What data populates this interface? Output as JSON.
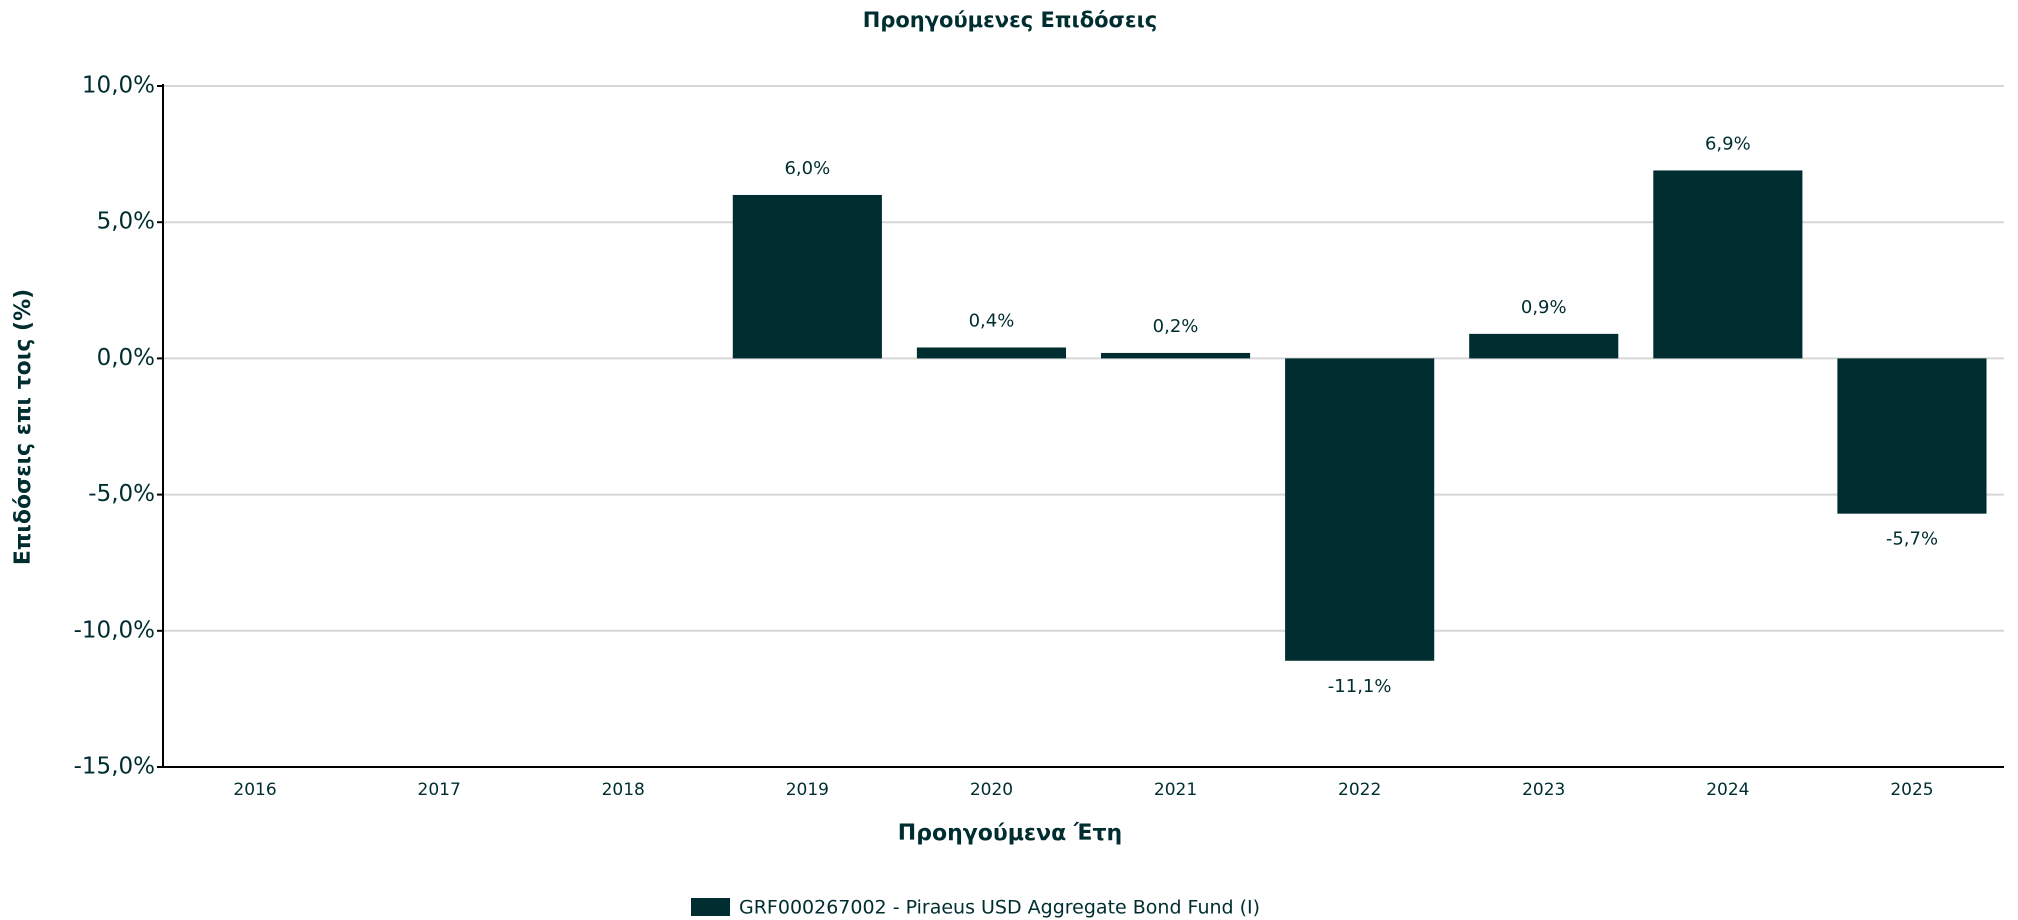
{
  "chart_data": {
    "type": "bar",
    "title": "Προηγούμενες Επιδόσεις",
    "x_label": "Προηγούμενα Έτη",
    "y_label": "Επιδόσεις επι τοις (%)",
    "categories": [
      "2016",
      "2017",
      "2018",
      "2019",
      "2020",
      "2021",
      "2022",
      "2023",
      "2024",
      "2025"
    ],
    "series": [
      {
        "name": "GRF000267002 - Piraeus USD Aggregate Bond Fund (I)",
        "color": "#002e30",
        "values": [
          null,
          null,
          null,
          6.0,
          0.4,
          0.2,
          -11.1,
          0.9,
          6.9,
          -5.7
        ],
        "value_labels": [
          null,
          null,
          null,
          "6,0%",
          "0,4%",
          "0,2%",
          "-11,1%",
          "0,9%",
          "6,9%",
          "-5,7%"
        ]
      }
    ],
    "ylim": [
      -15,
      10
    ],
    "yticks": [
      {
        "value": -15,
        "label": "-15,0%"
      },
      {
        "value": -10,
        "label": "-10,0%"
      },
      {
        "value": -5,
        "label": "-5,0%"
      },
      {
        "value": 0,
        "label": "0,0%"
      },
      {
        "value": 5,
        "label": "5,0%"
      },
      {
        "value": 10,
        "label": "10,0%"
      }
    ],
    "grid": true
  }
}
